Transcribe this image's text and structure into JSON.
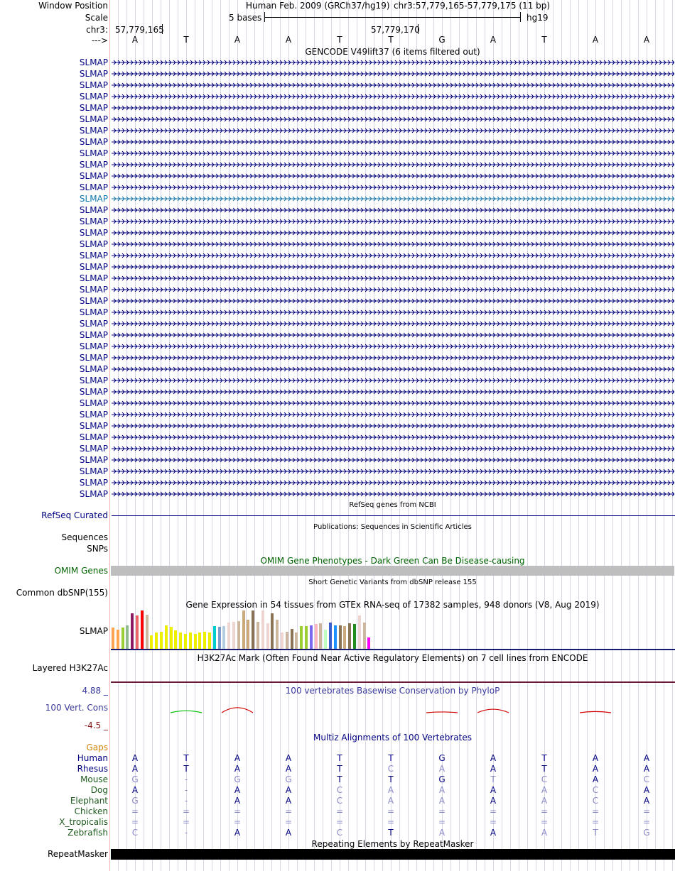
{
  "header": {
    "window_position_label": "Window Position",
    "assembly": "Human Feb. 2009 (GRCh37/hg19)",
    "position": "chr3:57,779,165-57,779,175 (11 bp)",
    "scale_label": "Scale",
    "scale_text": "5 bases",
    "scale_db": "hg19",
    "chrom_label": "chr3:",
    "coord_start": "57,779,165",
    "coord_mid": "57,779,170",
    "strand_label": "--->",
    "bases": [
      "A",
      "T",
      "A",
      "A",
      "T",
      "T",
      "G",
      "A",
      "T",
      "A",
      "A"
    ]
  },
  "gencode": {
    "title": "GENCODE V49lift37 (6 items filtered out)",
    "gene_name": "SLMAP",
    "row_count": 39,
    "highlight_index": 12,
    "colors": {
      "normal": "#000080",
      "highlight": "#1177aa"
    }
  },
  "refseq": {
    "title": "RefSeq genes from NCBI",
    "label": "RefSeq Curated"
  },
  "publications": {
    "title": "Publications: Sequences in Scientific Articles",
    "label1": "Sequences",
    "label2": "SNPs"
  },
  "omim": {
    "title": "OMIM Gene Phenotypes - Dark Green Can Be Disease-causing",
    "label": "OMIM Genes"
  },
  "dbsnp": {
    "title": "Short Genetic Variants from dbSNP release 155",
    "label": "Common dbSNP(155)"
  },
  "gtex": {
    "title": "Gene Expression in 54 tissues from GTEx RNA-seq of 17382 samples, 948 donors (V8, Aug 2019)",
    "label": "SLMAP",
    "values": [
      0.55,
      0.5,
      0.55,
      0.62,
      0.93,
      0.87,
      1.0,
      0.88,
      0.35,
      0.42,
      0.45,
      0.62,
      0.58,
      0.48,
      0.42,
      0.38,
      0.42,
      0.38,
      0.43,
      0.45,
      0.43,
      0.6,
      0.58,
      0.6,
      0.68,
      0.7,
      0.72,
      1.0,
      0.75,
      1.0,
      0.7,
      1.0,
      0.66,
      0.92,
      0.75,
      0.42,
      0.45,
      0.52,
      0.42,
      0.6,
      0.6,
      0.62,
      0.65,
      0.66,
      0.5,
      0.68,
      0.62,
      0.62,
      0.6,
      0.66,
      0.65,
      0.87,
      0.68,
      0.3
    ],
    "colors": [
      "#ffa54f",
      "#ffa54f",
      "#9acd32",
      "#8fbc8f",
      "#8b1c62",
      "#ee6363",
      "#ff0000",
      "#cdb79e",
      "#eeee00",
      "#eeee00",
      "#eeee00",
      "#eeee00",
      "#eeee00",
      "#eeee00",
      "#eeee00",
      "#eeee00",
      "#eeee00",
      "#eeee00",
      "#eeee00",
      "#eeee00",
      "#eeee00",
      "#00cdcd",
      "#7a9fcd",
      "#b4cde0",
      "#eed5d2",
      "#eed5d2",
      "#cdb79e",
      "#cdaa7d",
      "#cdaa7d",
      "#8b7355",
      "#cdb79e",
      "#eed5d2",
      "#eed5d2",
      "#8b7355",
      "#cdb79e",
      "#eed5d2",
      "#cdb79e",
      "#8b7355",
      "#cdb79e",
      "#9acd32",
      "#9acd32",
      "#7b68ee",
      "#ffb6c1",
      "#cdb79e",
      "#c1ffc1",
      "#3a5fcd",
      "#1e90ff",
      "#8b7355",
      "#cdaa7d",
      "#8b7355",
      "#228b22",
      "#eed5d2",
      "#cdb79e",
      "#ff00ff"
    ]
  },
  "h3k27ac": {
    "title": "H3K27Ac Mark (Often Found Near Active Regulatory Elements) on 7 cell lines from ENCODE",
    "label": "Layered H3K27Ac"
  },
  "cons": {
    "title": "100 vertebrates Basewise Conservation by PhyloP",
    "label": "100 Vert. Cons",
    "ymax": "4.88 _",
    "ymin": "-4.5 _",
    "values": [
      0,
      0.3,
      0.8,
      0,
      0,
      0,
      0.12,
      0.55,
      0,
      0.18,
      0
    ]
  },
  "multiz": {
    "title": "Multiz Alignments of 100 Vertebrates",
    "gaps_label": "Gaps",
    "species": [
      {
        "name": "Human",
        "bases": [
          "A",
          "T",
          "A",
          "A",
          "T",
          "T",
          "G",
          "A",
          "T",
          "A",
          "A"
        ],
        "dim": [
          0,
          0,
          0,
          0,
          0,
          0,
          0,
          0,
          0,
          0,
          0
        ]
      },
      {
        "name": "Rhesus",
        "bases": [
          "A",
          "T",
          "A",
          "A",
          "T",
          "C",
          "A",
          "A",
          "T",
          "A",
          "A"
        ],
        "dim": [
          0,
          0,
          0,
          0,
          0,
          1,
          1,
          0,
          0,
          0,
          0
        ]
      },
      {
        "name": "Mouse",
        "bases": [
          "G",
          "-",
          "G",
          "G",
          "T",
          "T",
          "G",
          "T",
          "C",
          "A",
          "C"
        ],
        "dim": [
          1,
          1,
          1,
          1,
          0,
          0,
          0,
          1,
          1,
          0,
          1
        ]
      },
      {
        "name": "Dog",
        "bases": [
          "A",
          "-",
          "A",
          "A",
          "C",
          "A",
          "A",
          "A",
          "A",
          "C",
          "A"
        ],
        "dim": [
          0,
          1,
          0,
          0,
          1,
          1,
          1,
          0,
          1,
          1,
          0
        ]
      },
      {
        "name": "Elephant",
        "bases": [
          "G",
          "-",
          "A",
          "A",
          "C",
          "A",
          "A",
          "A",
          "A",
          "C",
          "A"
        ],
        "dim": [
          1,
          1,
          0,
          0,
          1,
          1,
          1,
          0,
          1,
          1,
          0
        ]
      },
      {
        "name": "Chicken",
        "bases": [
          "=",
          "=",
          "=",
          "=",
          "=",
          "=",
          "=",
          "=",
          "=",
          "=",
          "="
        ],
        "dim": [
          1,
          1,
          1,
          1,
          1,
          1,
          1,
          1,
          1,
          1,
          1
        ]
      },
      {
        "name": "X_tropicalis",
        "bases": [
          "=",
          "=",
          "=",
          "=",
          "=",
          "=",
          "=",
          "=",
          "=",
          "=",
          "="
        ],
        "dim": [
          1,
          1,
          1,
          1,
          1,
          1,
          1,
          1,
          1,
          1,
          1
        ]
      },
      {
        "name": "Zebrafish",
        "bases": [
          "C",
          "-",
          "A",
          "A",
          "C",
          "T",
          "A",
          "A",
          "A",
          "T",
          "G"
        ],
        "dim": [
          1,
          1,
          0,
          0,
          1,
          0,
          1,
          0,
          1,
          1,
          1
        ]
      }
    ]
  },
  "repeatmasker": {
    "title": "Repeating Elements by RepeatMasker",
    "label": "RepeatMasker"
  }
}
